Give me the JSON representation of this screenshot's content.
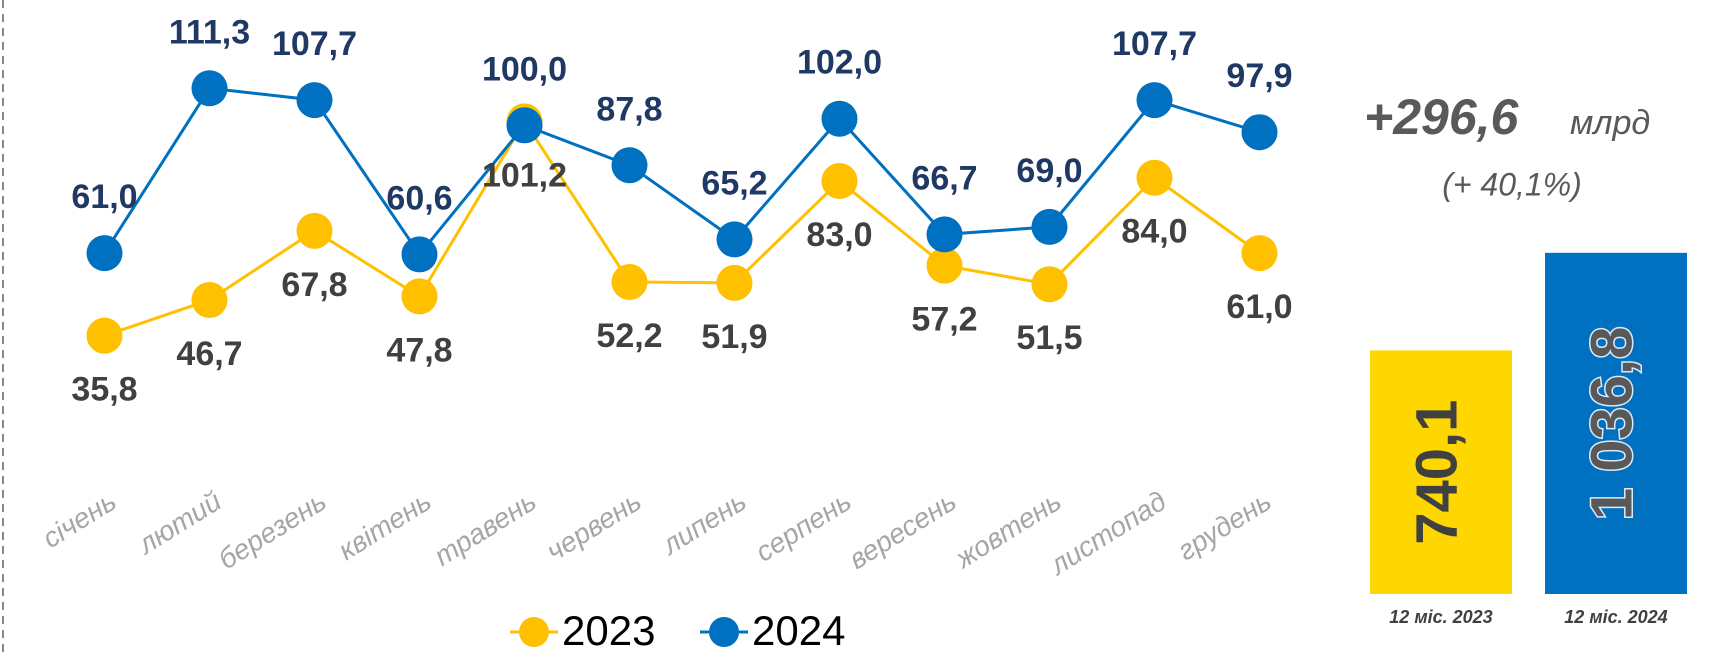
{
  "chart_data": [
    {
      "type": "line",
      "categories": [
        "січень",
        "лютий",
        "березень",
        "квітень",
        "травень",
        "червень",
        "липень",
        "серпень",
        "вересень",
        "жовтень",
        "листопад",
        "грудень"
      ],
      "series": [
        {
          "name": "2023",
          "color": "#ffc000",
          "values": [
            35.8,
            46.7,
            67.8,
            47.8,
            101.2,
            52.2,
            51.9,
            83.0,
            57.2,
            51.5,
            84.0,
            61.0
          ],
          "value_labels": [
            "35,8",
            "46,7",
            "67,8",
            "47,8",
            "101,2",
            "52,2",
            "51,9",
            "83,0",
            "57,2",
            "51,5",
            "84,0",
            "61,0"
          ]
        },
        {
          "name": "2024",
          "color": "#0070c0",
          "values": [
            61.0,
            111.3,
            107.7,
            60.6,
            100.0,
            87.8,
            65.2,
            102.0,
            66.7,
            69.0,
            107.7,
            97.9
          ],
          "value_labels": [
            "61,0",
            "111,3",
            "107,7",
            "60,6",
            "100,0",
            "87,8",
            "65,2",
            "102,0",
            "66,7",
            "69,0",
            "107,7",
            "97,9"
          ]
        }
      ],
      "ylim": [
        0,
        130
      ]
    },
    {
      "type": "bar",
      "annotations": [
        "+296,6",
        "млрд",
        "(+ 40,1%)"
      ],
      "categories": [
        "12 міс. 2023",
        "12 міс. 2024"
      ],
      "values": [
        740.1,
        1036.8
      ],
      "value_labels": [
        "740,1",
        "1 036,8"
      ],
      "colors": [
        "#ffd700",
        "#0070c0"
      ],
      "ylim": [
        0,
        1100
      ]
    }
  ]
}
